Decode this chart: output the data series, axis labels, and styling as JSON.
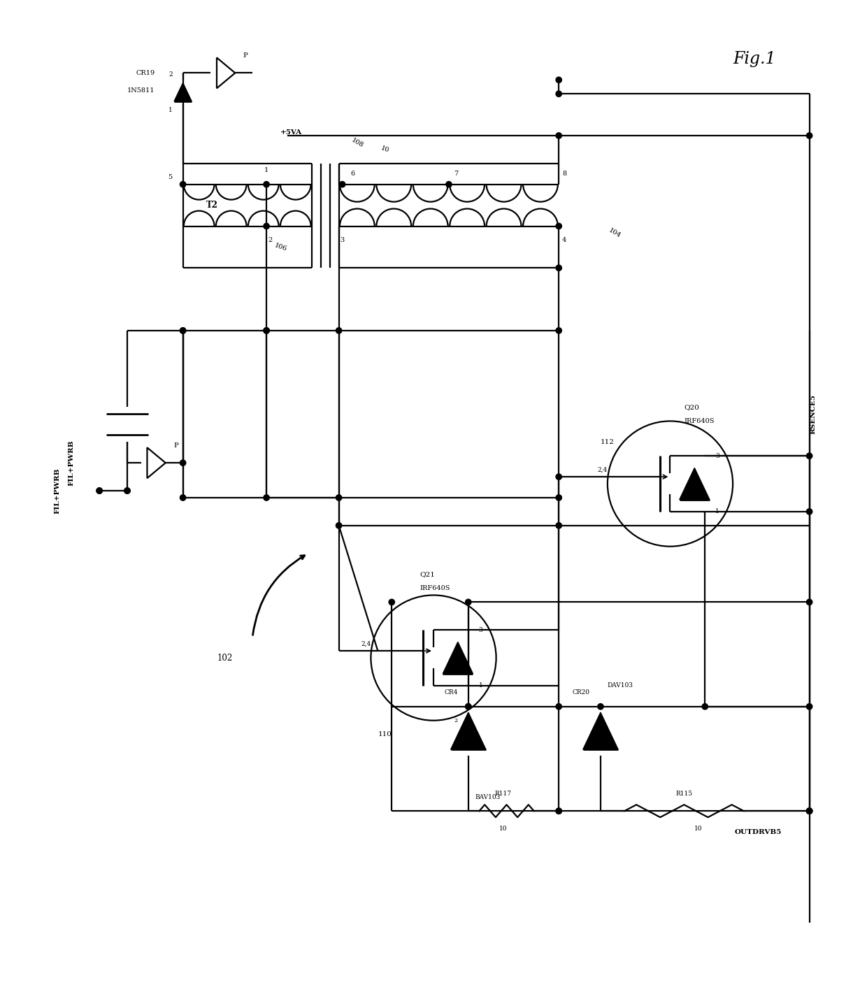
{
  "bg_color": "#ffffff",
  "fig_width": 12.4,
  "fig_height": 14.12,
  "fig1_label": "Fig.1",
  "rsence5": "RSENCE5",
  "plus5va": "+5VA",
  "t2": "T2",
  "cr19": "CR19",
  "n5811": "1N5811",
  "lbl_108": "108",
  "lbl_10a": "10",
  "lbl_106": "106",
  "lbl_104": "104",
  "lbl_1": "1",
  "lbl_2": "2",
  "lbl_3": "3",
  "lbl_4": "4",
  "lbl_5": "5",
  "lbl_6": "6",
  "lbl_7": "7",
  "lbl_8": "8",
  "q21": "Q21",
  "irf640s": "IRF640S",
  "q20": "Q20",
  "lbl_110": "110",
  "lbl_112": "112",
  "lbl_24": "2,4",
  "lbl_3x": "3",
  "lbl_1x": "1",
  "cr4": "CR4",
  "bav103": "BAV103",
  "r117": "R117",
  "lbl_2a": "2",
  "lbl_10b": "10",
  "cr20": "CR20",
  "dav103": "DAV103",
  "r115": "R115",
  "lbl_10c": "10",
  "fil_pwrb": "FIL+PWRB",
  "lbl_102": "102",
  "outdrvb5": "OUTDRVB5",
  "p_label": "P"
}
